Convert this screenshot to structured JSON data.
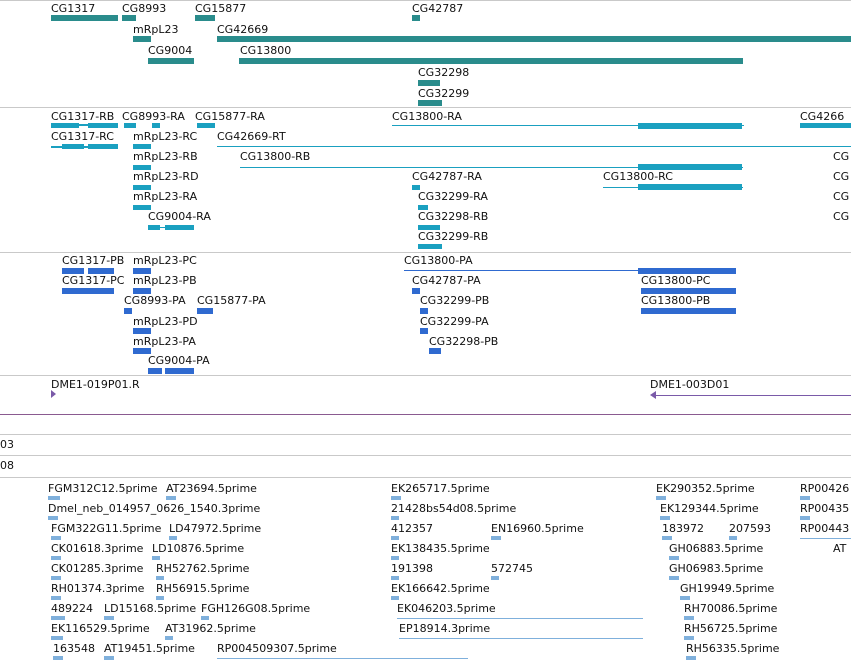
{
  "colors": {
    "gene": "#2a8c8c",
    "transcript": "#1aa0c0",
    "protein": "#2f6ad0",
    "clone": "#7a5aa8",
    "est": "#7fb0dc",
    "separator": "#c9c9c9"
  },
  "gene_track": {
    "labels": [
      "CG1317",
      "CG8993",
      "CG15877",
      "CG42787",
      "mRpL23",
      "CG42669",
      "CG9004",
      "CG13800",
      "CG32298",
      "CG32299"
    ]
  },
  "transcript_track": {
    "labels": [
      "CG1317-RB",
      "CG8993-RA",
      "CG15877-RA",
      "CG13800-RA",
      "CG4266",
      "CG1317-RC",
      "mRpL23-RC",
      "CG42669-RT",
      "mRpL23-RB",
      "CG13800-RB",
      "CG",
      "mRpL23-RD",
      "CG42787-RA",
      "CG13800-RC",
      "CG",
      "mRpL23-RA",
      "CG32299-RA",
      "CG",
      "CG9004-RA",
      "CG32298-RB",
      "CG",
      "CG32299-RB"
    ]
  },
  "protein_track": {
    "labels": [
      "CG1317-PB",
      "mRpL23-PC",
      "CG13800-PA",
      "CG1317-PC",
      "mRpL23-PB",
      "CG42787-PA",
      "CG13800-PC",
      "CG8993-PA",
      "CG15877-PA",
      "CG32299-PB",
      "CG13800-PB",
      "mRpL23-PD",
      "CG32299-PA",
      "mRpL23-PA",
      "CG32298-PB",
      "CG9004-PA"
    ]
  },
  "clone_track": {
    "labels": [
      "DME1-019P01.R",
      "DME1-003D01"
    ]
  },
  "small_tracks": {
    "labels": [
      "03",
      "08"
    ]
  },
  "est_track": {
    "labels": [
      "FGM312C12.5prime",
      "AT23694.5prime",
      "EK265717.5prime",
      "EK290352.5prime",
      "RP00426",
      "Dmel_neb_014957_0626_1540.3prime",
      "21428bs54d08.5prime",
      "EK129344.5prime",
      "RP00435",
      "FGM322G11.5prime",
      "LD47972.5prime",
      "412357",
      "EN16960.5prime",
      "183972",
      "207593",
      "RP00443",
      "CK01618.3prime",
      "LD10876.5prime",
      "EK138435.5prime",
      "GH06883.5prime",
      "AT",
      "CK01285.3prime",
      "RH52762.5prime",
      "191398",
      "572745",
      "GH06983.5prime",
      "RH01374.3prime",
      "RH56915.5prime",
      "EK166642.5prime",
      "GH19949.5prime",
      "489224",
      "LD15168.5prime",
      "FGH126G08.5prime",
      "EK046203.5prime",
      "RH70086.5prime",
      "EK116529.5prime",
      "AT31962.5prime",
      "EP18914.3prime",
      "RH56725.5prime",
      "163548",
      "AT19451.5prime",
      "RP004509307.5prime",
      "RH56335.5prime"
    ]
  }
}
